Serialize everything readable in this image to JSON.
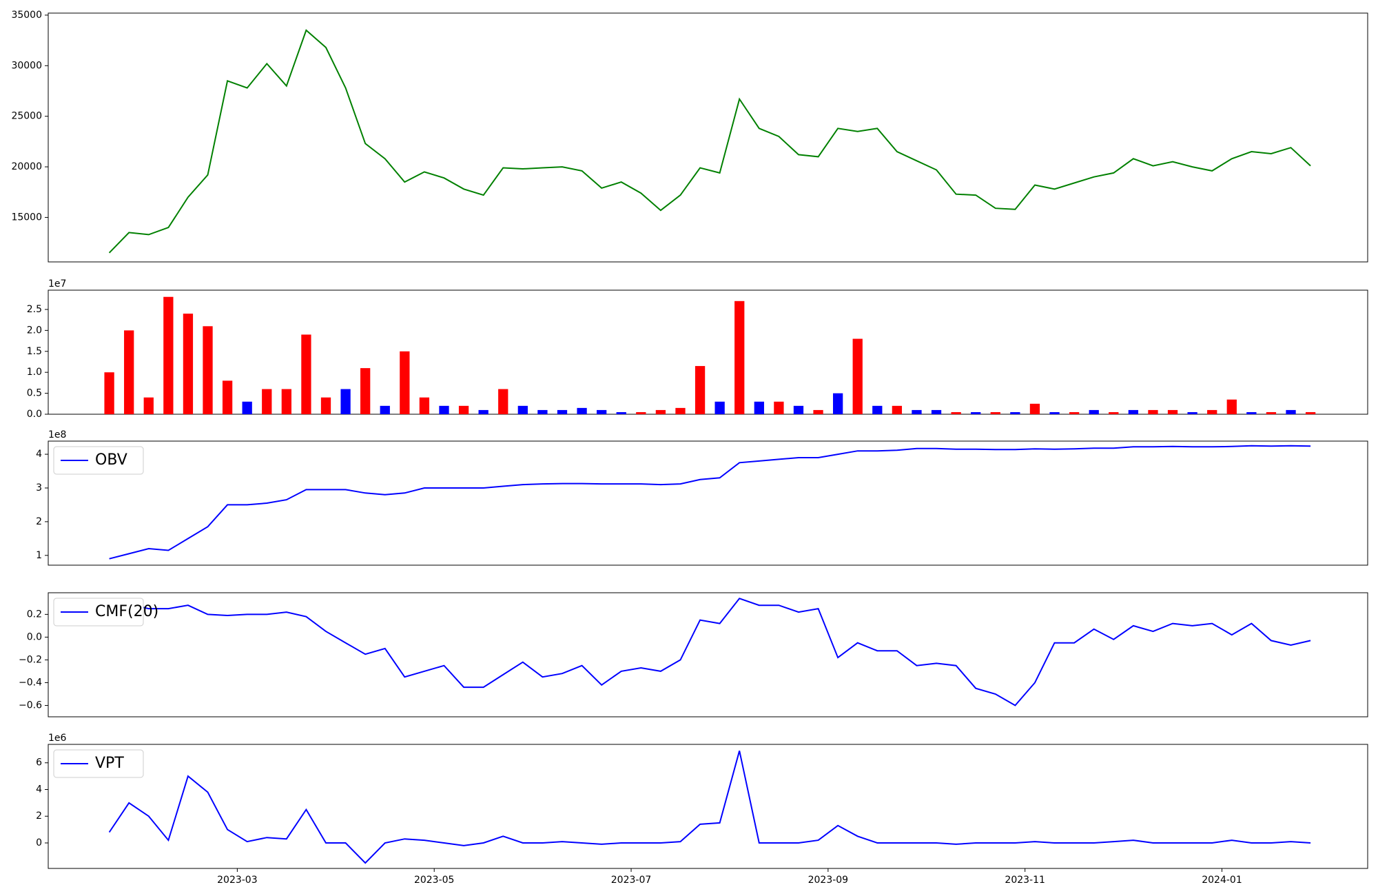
{
  "chart_data": [
    {
      "type": "line",
      "color": "green",
      "x": [
        1.7,
        1.9,
        2.1,
        2.3,
        2.5,
        2.7,
        2.9,
        3.1,
        3.3,
        3.5,
        3.7,
        3.9,
        4.1,
        4.3,
        4.5,
        4.7,
        4.9,
        5.1,
        5.3,
        5.5,
        5.7,
        5.9,
        6.1,
        6.3,
        6.5,
        6.7,
        6.9,
        7.1,
        7.3,
        7.5,
        7.7,
        7.9,
        8.1,
        8.3,
        8.5,
        8.7,
        8.9,
        9.1,
        9.3,
        9.5,
        9.7,
        9.9,
        10.1,
        10.3,
        10.5,
        10.7,
        10.9,
        11.1,
        11.3,
        11.5,
        11.7,
        11.9,
        12.1,
        12.3,
        12.5,
        12.7,
        12.9,
        13.1,
        13.3,
        13.5,
        13.7,
        13.9
      ],
      "values": [
        11500,
        13500,
        13300,
        14000,
        17000,
        19200,
        28500,
        27800,
        30200,
        28000,
        33500,
        31800,
        27800,
        22300,
        20800,
        18500,
        19500,
        18900,
        17800,
        17200,
        19900,
        19800,
        19900,
        20000,
        19600,
        17900,
        18500,
        17400,
        15700,
        17200,
        19900,
        19400,
        26700,
        23800,
        23000,
        21200,
        21000,
        23800,
        23500,
        23800,
        21500,
        20600,
        19700,
        17300,
        17200,
        15900,
        15800,
        18200,
        17800,
        18400,
        19000,
        19400,
        20800,
        20100,
        20500,
        20000,
        19600,
        20800,
        21500,
        21300,
        21900,
        20100
      ],
      "xlim": [
        1.08,
        14.48
      ],
      "ylim": [
        10600,
        35200
      ],
      "yticks": [
        15000,
        20000,
        25000,
        30000,
        35000
      ]
    },
    {
      "type": "bar",
      "offset_label": "1e7",
      "x": [
        1.7,
        1.9,
        2.1,
        2.3,
        2.5,
        2.7,
        2.9,
        3.1,
        3.3,
        3.5,
        3.7,
        3.9,
        4.1,
        4.3,
        4.5,
        4.7,
        4.9,
        5.1,
        5.3,
        5.5,
        5.7,
        5.9,
        6.1,
        6.3,
        6.5,
        6.7,
        6.9,
        7.1,
        7.3,
        7.5,
        7.7,
        7.9,
        8.1,
        8.3,
        8.5,
        8.7,
        8.9,
        9.1,
        9.3,
        9.5,
        9.7,
        9.9,
        10.1,
        10.3,
        10.5,
        10.7,
        10.9,
        11.1,
        11.3,
        11.5,
        11.7,
        11.9,
        12.1,
        12.3,
        12.5,
        12.7,
        12.9,
        13.1,
        13.3,
        13.5,
        13.7,
        13.9
      ],
      "values": [
        1.0,
        2.0,
        0.4,
        2.8,
        2.4,
        2.1,
        0.8,
        0.3,
        0.6,
        0.6,
        1.9,
        0.4,
        0.6,
        1.1,
        0.2,
        1.5,
        0.4,
        0.2,
        0.2,
        0.1,
        0.6,
        0.2,
        0.1,
        0.1,
        0.15,
        0.1,
        0.05,
        0.05,
        0.1,
        0.15,
        1.15,
        0.3,
        2.7,
        0.3,
        0.3,
        0.2,
        0.1,
        0.5,
        1.8,
        0.2,
        0.2,
        0.1,
        0.1,
        0.05,
        0.05,
        0.05,
        0.05,
        0.25,
        0.05,
        0.05,
        0.1,
        0.05,
        0.1,
        0.1,
        0.1,
        0.05,
        0.1,
        0.35,
        0.05,
        0.05,
        0.1,
        0.05
      ],
      "colors": [
        "red",
        "red",
        "red",
        "red",
        "red",
        "red",
        "red",
        "blue",
        "red",
        "red",
        "red",
        "red",
        "blue",
        "red",
        "blue",
        "red",
        "red",
        "blue",
        "red",
        "blue",
        "red",
        "blue",
        "blue",
        "blue",
        "blue",
        "blue",
        "blue",
        "red",
        "red",
        "red",
        "red",
        "blue",
        "red",
        "blue",
        "red",
        "blue",
        "red",
        "blue",
        "red",
        "blue",
        "red",
        "blue",
        "blue",
        "red",
        "blue",
        "red",
        "blue",
        "red",
        "blue",
        "red",
        "blue",
        "red",
        "blue",
        "red",
        "red",
        "blue",
        "red",
        "red",
        "blue",
        "red",
        "blue",
        "red"
      ],
      "xlim": [
        1.08,
        14.48
      ],
      "ylim": [
        0,
        2.96
      ],
      "yticks": [
        {
          "value": 0,
          "label": "0.0"
        },
        0.5,
        {
          "value": 1,
          "label": "1.0"
        },
        1.5,
        {
          "value": 2,
          "label": "2.0"
        },
        2.5
      ]
    },
    {
      "type": "line",
      "offset_label": "1e8",
      "legend": "upper left",
      "x": [
        1.7,
        1.9,
        2.1,
        2.3,
        2.5,
        2.7,
        2.9,
        3.1,
        3.3,
        3.5,
        3.7,
        3.9,
        4.1,
        4.3,
        4.5,
        4.7,
        4.9,
        5.1,
        5.3,
        5.5,
        5.7,
        5.9,
        6.1,
        6.3,
        6.5,
        6.7,
        6.9,
        7.1,
        7.3,
        7.5,
        7.7,
        7.9,
        8.1,
        8.3,
        8.5,
        8.7,
        8.9,
        9.1,
        9.3,
        9.5,
        9.7,
        9.9,
        10.1,
        10.3,
        10.5,
        10.7,
        10.9,
        11.1,
        11.3,
        11.5,
        11.7,
        11.9,
        12.1,
        12.3,
        12.5,
        12.7,
        12.9,
        13.1,
        13.3,
        13.5,
        13.7,
        13.9
      ],
      "series": [
        {
          "name": "OBV",
          "color": "blue",
          "values": [
            0.9,
            1.05,
            1.2,
            1.15,
            1.5,
            1.85,
            2.5,
            2.5,
            2.55,
            2.65,
            2.95,
            2.95,
            2.95,
            2.85,
            2.8,
            2.85,
            3.0,
            3.0,
            3.0,
            3.0,
            3.05,
            3.1,
            3.12,
            3.13,
            3.13,
            3.12,
            3.12,
            3.12,
            3.1,
            3.12,
            3.25,
            3.3,
            3.75,
            3.8,
            3.85,
            3.9,
            3.9,
            4.0,
            4.1,
            4.1,
            4.12,
            4.17,
            4.17,
            4.15,
            4.15,
            4.14,
            4.14,
            4.16,
            4.15,
            4.16,
            4.18,
            4.18,
            4.22,
            4.22,
            4.23,
            4.22,
            4.22,
            4.23,
            4.25,
            4.24,
            4.25,
            4.24
          ]
        }
      ],
      "xlim": [
        1.08,
        14.48
      ],
      "ylim": [
        0.71,
        4.39
      ],
      "yticks": [
        1,
        2,
        3,
        4
      ]
    },
    {
      "type": "line",
      "legend": "upper left",
      "x": [
        1.7,
        1.9,
        2.1,
        2.3,
        2.5,
        2.7,
        2.9,
        3.1,
        3.3,
        3.5,
        3.7,
        3.9,
        4.1,
        4.3,
        4.5,
        4.7,
        4.9,
        5.1,
        5.3,
        5.5,
        5.7,
        5.9,
        6.1,
        6.3,
        6.5,
        6.7,
        6.9,
        7.1,
        7.3,
        7.5,
        7.7,
        7.9,
        8.1,
        8.3,
        8.5,
        8.7,
        8.9,
        9.1,
        9.3,
        9.5,
        9.7,
        9.9,
        10.1,
        10.3,
        10.5,
        10.7,
        10.9,
        11.1,
        11.3,
        11.5,
        11.7,
        11.9,
        12.1,
        12.3,
        12.5,
        12.7,
        12.9,
        13.1,
        13.3,
        13.5,
        13.7,
        13.9
      ],
      "series": [
        {
          "name": "CMF(20)",
          "color": "blue",
          "values": [
            0.31,
            0.29,
            0.25,
            0.25,
            0.28,
            0.2,
            0.19,
            0.2,
            0.2,
            0.22,
            0.18,
            0.05,
            -0.05,
            -0.15,
            -0.1,
            -0.35,
            -0.3,
            -0.25,
            -0.44,
            -0.44,
            -0.33,
            -0.22,
            -0.35,
            -0.32,
            -0.25,
            -0.42,
            -0.3,
            -0.27,
            -0.3,
            -0.2,
            0.15,
            0.12,
            0.34,
            0.28,
            0.28,
            0.22,
            0.25,
            -0.18,
            -0.05,
            -0.12,
            -0.12,
            -0.25,
            -0.23,
            -0.25,
            -0.45,
            -0.5,
            -0.6,
            -0.4,
            -0.05,
            -0.05,
            0.07,
            -0.02,
            0.1,
            0.05,
            0.12,
            0.1,
            0.12,
            0.02,
            0.12,
            -0.03,
            -0.07,
            -0.03
          ]
        }
      ],
      "xlim": [
        1.08,
        14.48
      ],
      "ylim": [
        -0.7,
        0.39
      ],
      "yticks": [
        {
          "value": -0.6,
          "label": "−0.6"
        },
        {
          "value": -0.4,
          "label": "−0.4"
        },
        {
          "value": -0.2,
          "label": "−0.2"
        },
        {
          "value": 0,
          "label": "0.0"
        },
        0.2
      ]
    },
    {
      "type": "line",
      "offset_label": "1e6",
      "legend": "upper left",
      "x": [
        1.7,
        1.9,
        2.1,
        2.3,
        2.5,
        2.7,
        2.9,
        3.1,
        3.3,
        3.5,
        3.7,
        3.9,
        4.1,
        4.3,
        4.5,
        4.7,
        4.9,
        5.1,
        5.3,
        5.5,
        5.7,
        5.9,
        6.1,
        6.3,
        6.5,
        6.7,
        6.9,
        7.1,
        7.3,
        7.5,
        7.7,
        7.9,
        8.1,
        8.3,
        8.5,
        8.7,
        8.9,
        9.1,
        9.3,
        9.5,
        9.7,
        9.9,
        10.1,
        10.3,
        10.5,
        10.7,
        10.9,
        11.1,
        11.3,
        11.5,
        11.7,
        11.9,
        12.1,
        12.3,
        12.5,
        12.7,
        12.9,
        13.1,
        13.3,
        13.5,
        13.7,
        13.9
      ],
      "series": [
        {
          "name": "VPT",
          "color": "blue",
          "values": [
            0.8,
            3.0,
            2.0,
            0.2,
            5.0,
            3.8,
            1.0,
            0.1,
            0.4,
            0.3,
            2.5,
            0,
            0,
            -1.5,
            0,
            0.3,
            0.2,
            0,
            -0.2,
            0,
            0.5,
            0,
            0,
            0.1,
            0,
            -0.1,
            0,
            0,
            0,
            0.1,
            1.4,
            1.5,
            6.9,
            0,
            0,
            0,
            0.2,
            1.3,
            0.5,
            0,
            0,
            0,
            0,
            -0.1,
            0,
            0,
            0,
            0.1,
            0,
            0,
            0,
            0.1,
            0.2,
            0,
            0,
            0,
            0,
            0.2,
            0,
            0,
            0.1,
            0
          ]
        }
      ],
      "xlim": [
        1.08,
        14.48
      ],
      "ylim": [
        -1.91,
        7.38
      ],
      "yticks": [
        0,
        2,
        4,
        6
      ],
      "xticks": [
        {
          "value": 3,
          "label": "2023-03"
        },
        {
          "value": 5,
          "label": "2023-05"
        },
        {
          "value": 7,
          "label": "2023-07"
        },
        {
          "value": 9,
          "label": "2023-09"
        },
        {
          "value": 11,
          "label": "2023-11"
        },
        {
          "value": 13,
          "label": "2024-01"
        }
      ]
    }
  ]
}
